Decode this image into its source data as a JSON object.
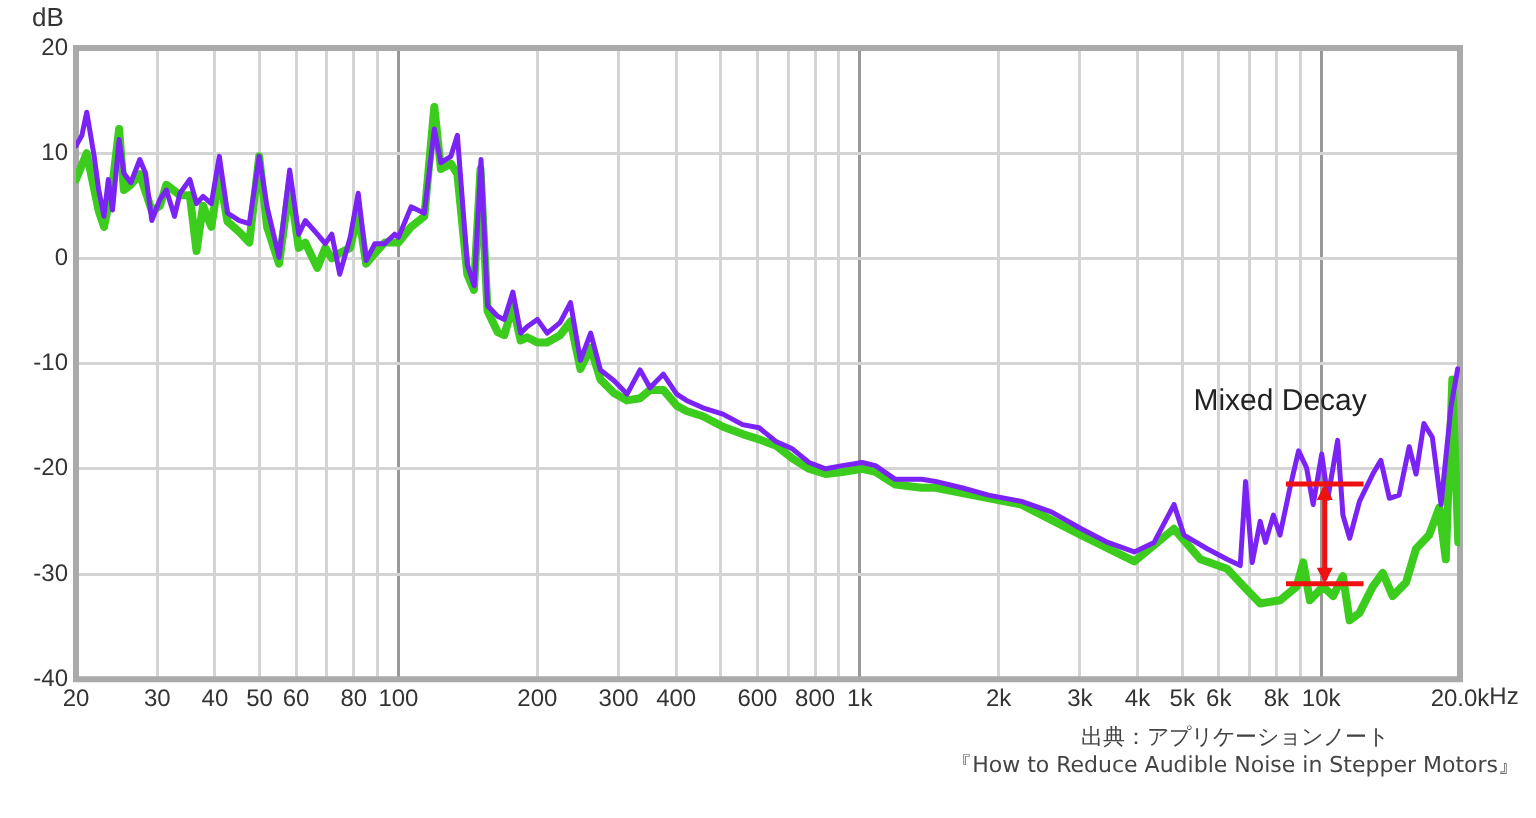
{
  "chart_data": {
    "type": "line",
    "ylabel": "dB",
    "log": "x",
    "grid": true,
    "marker": "none",
    "line_style": "solid",
    "xlim": [
      20,
      20000
    ],
    "ylim": [
      -40,
      20
    ],
    "xticks": [
      20,
      30,
      40,
      50,
      60,
      {
        "value": 70,
        "label": null
      },
      80,
      {
        "value": 90,
        "label": null
      },
      100,
      200,
      300,
      400,
      {
        "value": 500,
        "label": null
      },
      600,
      {
        "value": 700,
        "label": null
      },
      800,
      {
        "value": 900,
        "label": null
      },
      {
        "value": 1000,
        "label": "1k"
      },
      {
        "value": 2000,
        "label": "2k"
      },
      {
        "value": 3000,
        "label": "3k"
      },
      {
        "value": 4000,
        "label": "4k"
      },
      {
        "value": 5000,
        "label": "5k"
      },
      {
        "value": 6000,
        "label": "6k"
      },
      {
        "value": 7000,
        "label": null
      },
      {
        "value": 8000,
        "label": "8k"
      },
      {
        "value": 9000,
        "label": null
      },
      {
        "value": 10000,
        "label": "10k"
      },
      {
        "value": 20000,
        "label": "20.0k"
      }
    ],
    "xlabel": "Hz",
    "yticks": [
      -40,
      -30,
      -20,
      -10,
      0,
      10,
      20
    ],
    "annotations": [
      "出典：アプリケーションノート",
      "『How to Reduce Audible Noise in Stepper Motors』"
    ],
    "series": [
      {
        "name": "Mixed Decay",
        "color": "#7b22f5",
        "x": [
          20,
          20.6,
          21.1,
          21.9,
          22.4,
          23.0,
          23.5,
          24.0,
          24.8,
          25.4,
          26.3,
          27.5,
          28.3,
          29.2,
          30.4,
          31.4,
          32.7,
          33.6,
          35.3,
          36.5,
          37.7,
          39.3,
          40.9,
          42.6,
          45.2,
          47.5,
          49.9,
          51.9,
          55.1,
          58.1,
          60.8,
          62.8,
          66.7,
          69.4,
          71.7,
          74.6,
          78.6,
          81.8,
          85.1,
          88.9,
          93.4,
          98.1,
          100,
          106.5,
          113.8,
          119.6,
          123.6,
          129.9,
          134.2,
          141,
          146,
          151,
          156,
          164,
          169.6,
          177,
          184,
          190,
          200,
          210,
          224,
          236,
          248,
          261,
          274,
          293,
          313,
          334,
          351,
          375,
          401,
          421,
          457,
          505,
          557,
          605,
          658,
          714,
          776,
          843,
          917,
          1012,
          1081,
          1194,
          1362,
          1459,
          1664,
          1901,
          2241,
          2600,
          3020,
          3446,
          3936,
          4345,
          4799,
          5042,
          5662,
          6252,
          6678,
          6859,
          7088,
          7377,
          7572,
          7880,
          8144,
          8560,
          8937,
          9299,
          9611,
          10030,
          10340,
          10860,
          11150,
          11530,
          12110,
          12940,
          13470,
          14060,
          14760,
          15520,
          16060,
          16700,
          17420,
          18200,
          19120,
          19770
        ],
        "values": [
          10.7,
          11.7,
          13.9,
          9.7,
          6.5,
          4.0,
          7.5,
          4.6,
          11.3,
          8.1,
          7.2,
          9.4,
          8.1,
          3.6,
          5.6,
          6.5,
          4.0,
          6.2,
          7.5,
          5.2,
          5.9,
          5.2,
          9.7,
          4.3,
          3.6,
          3.3,
          9.7,
          4.9,
          0.1,
          8.4,
          2.3,
          3.6,
          2.3,
          1.4,
          2.3,
          -1.5,
          2.0,
          6.2,
          -0.2,
          1.4,
          1.4,
          2.3,
          2.0,
          4.9,
          4.3,
          12.3,
          9.1,
          9.7,
          11.7,
          -0.6,
          -2.6,
          9.4,
          -4.5,
          -5.5,
          -5.8,
          -3.2,
          -7.1,
          -6.5,
          -5.8,
          -7.1,
          -6.1,
          -4.2,
          -9.7,
          -7.1,
          -10.6,
          -11.6,
          -12.9,
          -10.6,
          -12.3,
          -11.0,
          -12.9,
          -13.5,
          -14.2,
          -14.8,
          -15.8,
          -16.1,
          -17.4,
          -18.1,
          -19.4,
          -20.0,
          -19.7,
          -19.4,
          -19.7,
          -21.0,
          -21.0,
          -21.2,
          -21.8,
          -22.5,
          -23.1,
          -24.1,
          -25.7,
          -27.0,
          -27.9,
          -27.0,
          -23.4,
          -26.3,
          -27.6,
          -28.6,
          -29.2,
          -21.2,
          -28.9,
          -25.0,
          -27.0,
          -24.4,
          -26.3,
          -21.8,
          -18.3,
          -19.9,
          -23.4,
          -18.6,
          -22.8,
          -17.3,
          -24.4,
          -26.6,
          -23.1,
          -20.5,
          -19.2,
          -22.8,
          -22.5,
          -17.9,
          -20.5,
          -15.7,
          -17.0,
          -23.4,
          -14.1,
          -10.5
        ]
      },
      {
        "color": "#3ccc1e",
        "x": [
          20,
          21.1,
          22.4,
          23.0,
          24.0,
          24.8,
          25.4,
          26.3,
          27.5,
          29.2,
          30.4,
          31.4,
          33.6,
          35.3,
          36.5,
          37.7,
          39.3,
          40.9,
          42.6,
          45.2,
          47.5,
          49.9,
          51.9,
          55.1,
          58.1,
          60.8,
          62.8,
          66.7,
          69.4,
          71.7,
          74.6,
          78.6,
          81.8,
          85.1,
          88.9,
          93.4,
          100,
          106.5,
          113.8,
          119.6,
          123.6,
          129.9,
          134.2,
          141,
          145.7,
          150.6,
          156,
          164,
          169.6,
          177,
          184,
          190,
          200,
          210,
          224,
          236,
          248,
          261,
          274,
          293,
          313,
          334,
          351,
          375,
          401,
          421,
          457,
          505,
          557,
          605,
          658,
          714,
          776,
          843,
          917,
          1012,
          1081,
          1194,
          1362,
          1459,
          2241,
          3020,
          3936,
          4799,
          5475,
          6252,
          6903,
          7377,
          8144,
          8850,
          9146,
          9454,
          10100,
          10620,
          11150,
          11530,
          12110,
          12940,
          13600,
          14290,
          15280,
          16060,
          17140,
          18030,
          18630,
          19250,
          19830
        ],
        "values": [
          7.5,
          10.0,
          4.5,
          3.0,
          7.0,
          12.3,
          6.5,
          7.0,
          8.0,
          4.5,
          5.0,
          7.0,
          6.0,
          6.0,
          0.7,
          5.0,
          3.0,
          8.0,
          3.5,
          2.5,
          1.5,
          9.7,
          3.0,
          -0.5,
          7.0,
          1.0,
          1.5,
          -0.9,
          1.0,
          0.0,
          0.5,
          1.0,
          4.5,
          -0.5,
          0.5,
          1.5,
          1.5,
          3.0,
          4.0,
          14.4,
          8.5,
          9.0,
          8.0,
          -1.5,
          -3.0,
          8.5,
          -5.0,
          -7.0,
          -7.3,
          -4.5,
          -7.8,
          -7.5,
          -8.0,
          -8.0,
          -7.3,
          -6.0,
          -10.5,
          -8.5,
          -11.5,
          -12.8,
          -13.5,
          -13.3,
          -12.5,
          -12.5,
          -14.0,
          -14.5,
          -15.0,
          -16.0,
          -16.7,
          -17.2,
          -17.8,
          -19.0,
          -20.0,
          -20.5,
          -20.3,
          -20.0,
          -20.3,
          -21.5,
          -21.8,
          -21.8,
          -23.4,
          -26.3,
          -28.8,
          -25.7,
          -28.6,
          -29.5,
          -31.5,
          -32.8,
          -32.5,
          -31.2,
          -28.9,
          -32.5,
          -31.2,
          -32.1,
          -30.2,
          -34.4,
          -33.7,
          -31.2,
          -29.9,
          -32.1,
          -30.8,
          -27.6,
          -26.3,
          -23.7,
          -28.6,
          -11.5,
          -27.0
        ]
      }
    ]
  }
}
